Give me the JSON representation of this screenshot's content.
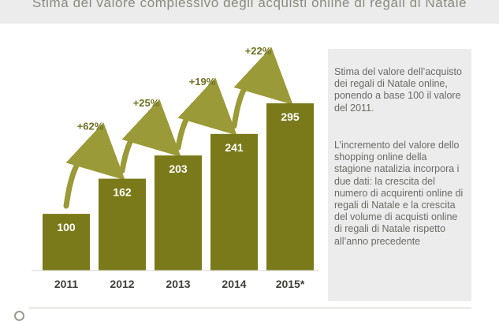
{
  "title": "Stima del valore complessivo degli acquisti online di regali di Natale",
  "chart_data": {
    "type": "bar",
    "categories": [
      "2011",
      "2012",
      "2013",
      "2014",
      "2015*"
    ],
    "values": [
      100,
      162,
      203,
      241,
      295
    ],
    "growth_labels": [
      "+62%",
      "+25%",
      "+19%",
      "+22%"
    ],
    "ylim": [
      0,
      295
    ],
    "bar_color": "#7a7a1a",
    "arrow_color": "#9a9a38",
    "grid": false
  },
  "panel": {
    "paragraph1": "Stima del valore dell’acquisto dei regali di Natale online, ponendo a base 100 il valore del 2011.",
    "paragraph2": "L’incremento del valore dello shopping online della stagione natalizia incorpora i due dati: la crescita del numero di acquirenti online di regali di Natale e la crescita del volume di acquisti online di regali di Natale rispetto all’anno precedente"
  }
}
